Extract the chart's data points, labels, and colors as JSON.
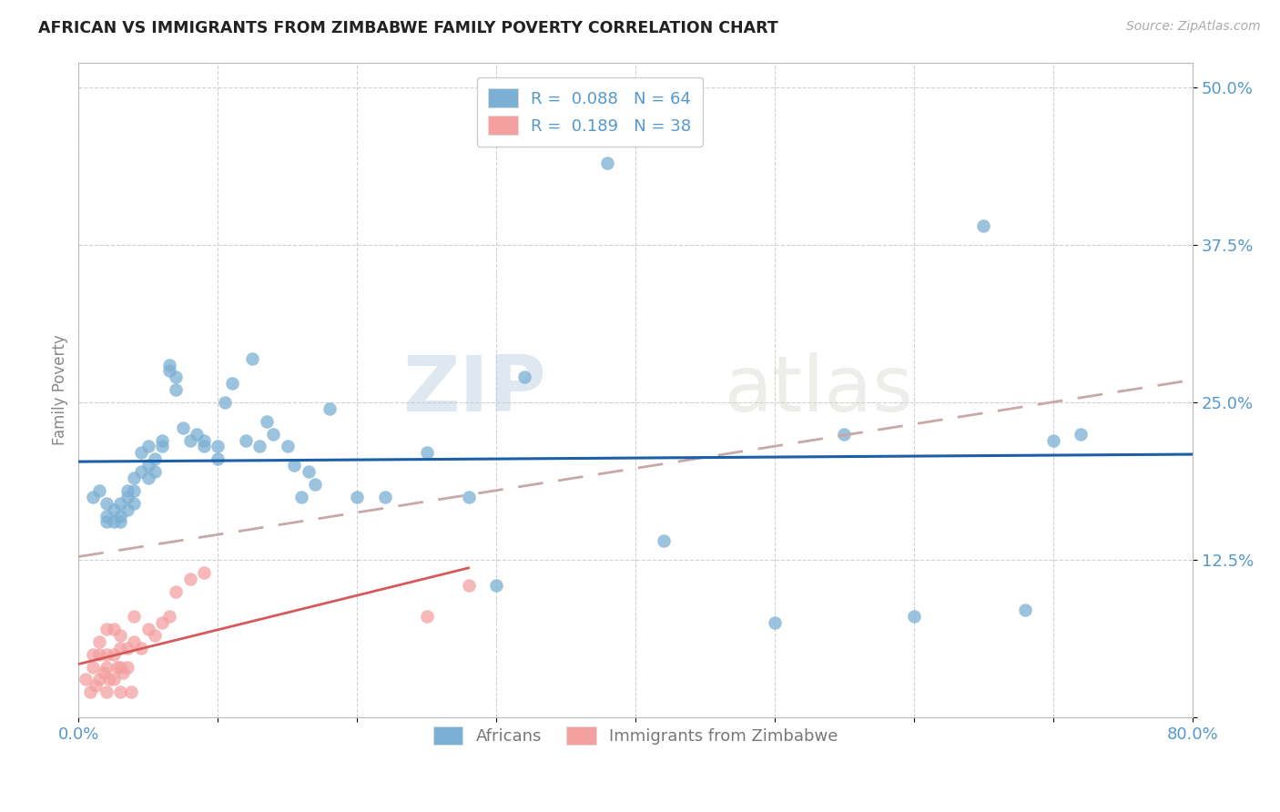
{
  "title": "AFRICAN VS IMMIGRANTS FROM ZIMBABWE FAMILY POVERTY CORRELATION CHART",
  "source": "Source: ZipAtlas.com",
  "ylabel": "Family Poverty",
  "yticks": [
    0.0,
    0.125,
    0.25,
    0.375,
    0.5
  ],
  "ytick_labels": [
    "",
    "12.5%",
    "25.0%",
    "37.5%",
    "50.0%"
  ],
  "xlim": [
    0.0,
    0.8
  ],
  "ylim": [
    0.0,
    0.52
  ],
  "r_african": 0.088,
  "n_african": 64,
  "r_zimbabwe": 0.189,
  "n_zimbabwe": 38,
  "color_african": "#7BAFD4",
  "color_zimbabwe": "#F4A0A0",
  "trendline_african_color": "#1A5FA8",
  "trendline_zimbabwe_color": "#D45A5A",
  "trendline_dashed_color": "#C8A8A8",
  "background_color": "#FFFFFF",
  "grid_color": "#CCCCCC",
  "axis_color": "#BBBBBB",
  "tick_label_color": "#5599CC",
  "title_color": "#222222",
  "watermark_zip": "ZIP",
  "watermark_atlas": "atlas",
  "africans_x": [
    0.01,
    0.015,
    0.02,
    0.02,
    0.02,
    0.025,
    0.025,
    0.03,
    0.03,
    0.03,
    0.035,
    0.035,
    0.035,
    0.04,
    0.04,
    0.04,
    0.045,
    0.045,
    0.05,
    0.05,
    0.05,
    0.055,
    0.055,
    0.06,
    0.06,
    0.065,
    0.065,
    0.07,
    0.07,
    0.075,
    0.08,
    0.085,
    0.09,
    0.09,
    0.1,
    0.1,
    0.105,
    0.11,
    0.12,
    0.125,
    0.13,
    0.135,
    0.14,
    0.15,
    0.155,
    0.16,
    0.165,
    0.17,
    0.18,
    0.2,
    0.22,
    0.25,
    0.28,
    0.3,
    0.32,
    0.38,
    0.42,
    0.5,
    0.55,
    0.6,
    0.65,
    0.68,
    0.7,
    0.72
  ],
  "africans_y": [
    0.175,
    0.18,
    0.16,
    0.155,
    0.17,
    0.155,
    0.165,
    0.17,
    0.155,
    0.16,
    0.18,
    0.165,
    0.175,
    0.19,
    0.18,
    0.17,
    0.195,
    0.21,
    0.2,
    0.19,
    0.215,
    0.205,
    0.195,
    0.22,
    0.215,
    0.28,
    0.275,
    0.27,
    0.26,
    0.23,
    0.22,
    0.225,
    0.22,
    0.215,
    0.215,
    0.205,
    0.25,
    0.265,
    0.22,
    0.285,
    0.215,
    0.235,
    0.225,
    0.215,
    0.2,
    0.175,
    0.195,
    0.185,
    0.245,
    0.175,
    0.175,
    0.21,
    0.175,
    0.105,
    0.27,
    0.44,
    0.14,
    0.075,
    0.225,
    0.08,
    0.39,
    0.085,
    0.22,
    0.225
  ],
  "zimbabwe_x": [
    0.005,
    0.008,
    0.01,
    0.01,
    0.012,
    0.015,
    0.015,
    0.015,
    0.018,
    0.02,
    0.02,
    0.02,
    0.02,
    0.022,
    0.025,
    0.025,
    0.025,
    0.028,
    0.03,
    0.03,
    0.03,
    0.03,
    0.032,
    0.035,
    0.035,
    0.038,
    0.04,
    0.04,
    0.045,
    0.05,
    0.055,
    0.06,
    0.065,
    0.07,
    0.08,
    0.09,
    0.25,
    0.28
  ],
  "zimbabwe_y": [
    0.03,
    0.02,
    0.04,
    0.05,
    0.025,
    0.03,
    0.05,
    0.06,
    0.035,
    0.02,
    0.04,
    0.05,
    0.07,
    0.03,
    0.03,
    0.05,
    0.07,
    0.04,
    0.02,
    0.04,
    0.055,
    0.065,
    0.035,
    0.04,
    0.055,
    0.02,
    0.06,
    0.08,
    0.055,
    0.07,
    0.065,
    0.075,
    0.08,
    0.1,
    0.11,
    0.115,
    0.08,
    0.105
  ]
}
